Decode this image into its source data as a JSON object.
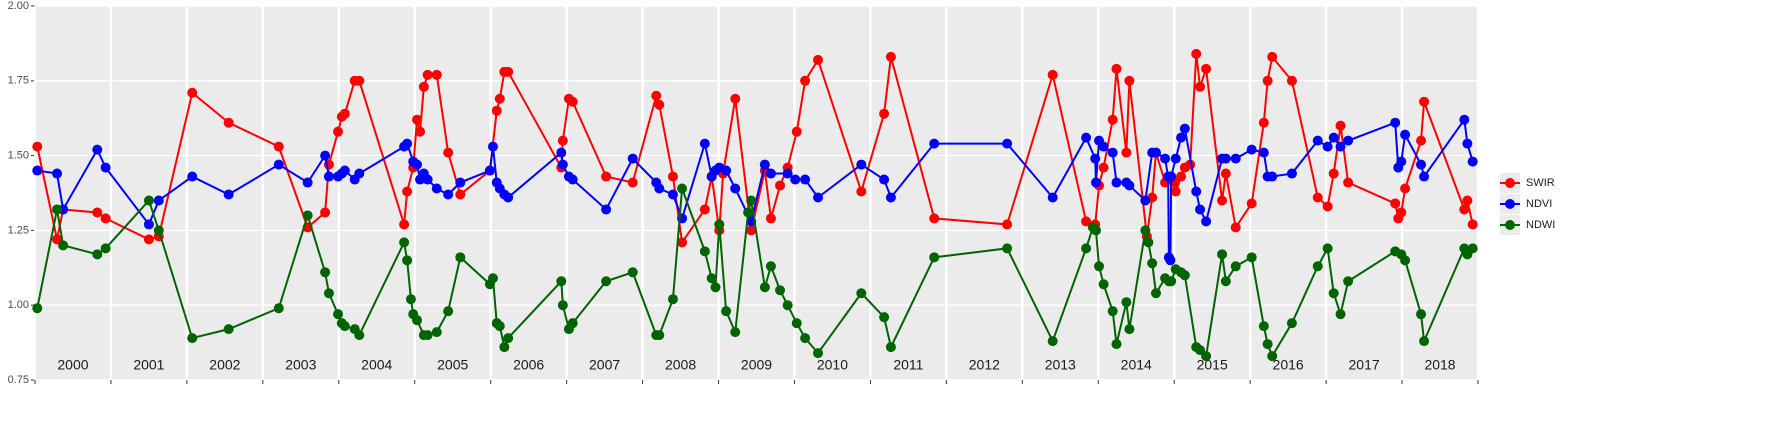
{
  "chart_data": {
    "type": "line",
    "xlim": [
      2000,
      2019
    ],
    "xticks": [
      2000,
      2001,
      2002,
      2003,
      2004,
      2005,
      2006,
      2007,
      2008,
      2009,
      2010,
      2011,
      2012,
      2013,
      2014,
      2015,
      2016,
      2017,
      2018,
      2019
    ],
    "year_labels": [
      "2000",
      "2001",
      "2002",
      "2003",
      "2004",
      "2005",
      "2006",
      "2007",
      "2008",
      "2009",
      "2010",
      "2011",
      "2012",
      "2013",
      "2014",
      "2015",
      "2016",
      "2017",
      "2018"
    ],
    "ylim": [
      0.75,
      2.0
    ],
    "yticks": [
      0.75,
      {
        "value": 1,
        "label": "1.00"
      },
      1.25,
      {
        "value": 1.5,
        "label": "1.50"
      },
      1.75,
      {
        "value": 2,
        "label": "2.00"
      }
    ],
    "grid": true,
    "legend_position": "right",
    "series": [
      {
        "name": "SWIR",
        "color": "#ff0000",
        "x": [
          2000.03,
          2000.29,
          2000.37,
          2000.82,
          2000.93,
          2001.5,
          2001.63,
          2002.07,
          2002.55,
          2003.21,
          2003.59,
          2003.82,
          2003.87,
          2003.99,
          2004.04,
          2004.08,
          2004.21,
          2004.27,
          2004.86,
          2004.9,
          2004.98,
          2005.03,
          2005.07,
          2005.12,
          2005.17,
          2005.29,
          2005.44,
          2005.6,
          2005.99,
          2006.08,
          2006.12,
          2006.18,
          2006.23,
          2006.93,
          2006.95,
          2007.03,
          2007.08,
          2007.52,
          2007.87,
          2008.18,
          2008.22,
          2008.4,
          2008.52,
          2008.82,
          2008.91,
          2009.01,
          2009.06,
          2009.22,
          2009.43,
          2009.61,
          2009.69,
          2009.81,
          2009.91,
          2010.03,
          2010.14,
          2010.31,
          2010.88,
          2011.18,
          2011.27,
          2011.84,
          2012.8,
          2013.4,
          2013.84,
          2013.96,
          2014.01,
          2014.07,
          2014.19,
          2014.24,
          2014.37,
          2014.41,
          2014.64,
          2014.71,
          2014.76,
          2014.88,
          2015.01,
          2015.02,
          2015.09,
          2015.14,
          2015.21,
          2015.29,
          2015.34,
          2015.42,
          2015.63,
          2015.68,
          2015.81,
          2016.02,
          2016.18,
          2016.23,
          2016.29,
          2016.55,
          2016.89,
          2017.02,
          2017.1,
          2017.19,
          2017.29,
          2017.91,
          2017.95,
          2017.99,
          2018.04,
          2018.25,
          2018.29,
          2018.82,
          2018.86,
          2018.93
        ],
        "values": [
          1.53,
          1.22,
          1.32,
          1.31,
          1.29,
          1.22,
          1.23,
          1.71,
          1.61,
          1.53,
          1.26,
          1.31,
          1.47,
          1.58,
          1.63,
          1.64,
          1.75,
          1.75,
          1.27,
          1.38,
          1.46,
          1.62,
          1.58,
          1.73,
          1.77,
          1.77,
          1.51,
          1.37,
          1.45,
          1.65,
          1.69,
          1.78,
          1.78,
          1.46,
          1.55,
          1.69,
          1.68,
          1.43,
          1.41,
          1.7,
          1.67,
          1.43,
          1.21,
          1.32,
          1.43,
          1.25,
          1.44,
          1.69,
          1.25,
          1.45,
          1.29,
          1.4,
          1.46,
          1.58,
          1.75,
          1.82,
          1.38,
          1.64,
          1.83,
          1.29,
          1.27,
          1.77,
          1.28,
          1.27,
          1.4,
          1.46,
          1.62,
          1.79,
          1.51,
          1.75,
          1.23,
          1.36,
          1.51,
          1.41,
          1.41,
          1.38,
          1.43,
          1.46,
          1.47,
          1.84,
          1.73,
          1.79,
          1.35,
          1.44,
          1.26,
          1.34,
          1.61,
          1.75,
          1.83,
          1.75,
          1.36,
          1.33,
          1.44,
          1.6,
          1.41,
          1.34,
          1.29,
          1.31,
          1.39,
          1.55,
          1.68,
          1.32,
          1.35,
          1.27
        ]
      },
      {
        "name": "NDVI",
        "color": "#0000ff",
        "x": [
          2000.03,
          2000.29,
          2000.37,
          2000.82,
          2000.93,
          2001.5,
          2001.63,
          2002.07,
          2002.55,
          2003.21,
          2003.59,
          2003.82,
          2003.87,
          2003.99,
          2004.04,
          2004.08,
          2004.21,
          2004.27,
          2004.86,
          2004.9,
          2004.98,
          2005.03,
          2005.07,
          2005.12,
          2005.17,
          2005.29,
          2005.44,
          2005.6,
          2005.99,
          2006.03,
          2006.08,
          2006.12,
          2006.18,
          2006.23,
          2006.93,
          2006.95,
          2007.03,
          2007.08,
          2007.52,
          2007.87,
          2008.18,
          2008.22,
          2008.4,
          2008.52,
          2008.82,
          2008.91,
          2008.96,
          2009.01,
          2009.1,
          2009.22,
          2009.43,
          2009.61,
          2009.69,
          2009.91,
          2010.01,
          2010.14,
          2010.31,
          2010.88,
          2011.18,
          2011.27,
          2011.84,
          2012.8,
          2013.4,
          2013.84,
          2013.96,
          2013.97,
          2014.01,
          2014.07,
          2014.19,
          2014.24,
          2014.37,
          2014.41,
          2014.62,
          2014.71,
          2014.76,
          2014.88,
          2014.92,
          2014.93,
          2014.95,
          2014.96,
          2015.02,
          2015.09,
          2015.14,
          2015.29,
          2015.34,
          2015.42,
          2015.63,
          2015.68,
          2015.81,
          2016.02,
          2016.18,
          2016.23,
          2016.29,
          2016.55,
          2016.89,
          2017.02,
          2017.1,
          2017.19,
          2017.29,
          2017.91,
          2017.95,
          2017.99,
          2018.04,
          2018.25,
          2018.29,
          2018.82,
          2018.86,
          2018.93
        ],
        "values": [
          1.45,
          1.44,
          1.32,
          1.52,
          1.46,
          1.27,
          1.35,
          1.43,
          1.37,
          1.47,
          1.41,
          1.5,
          1.43,
          1.43,
          1.44,
          1.45,
          1.42,
          1.44,
          1.53,
          1.54,
          1.48,
          1.47,
          1.42,
          1.44,
          1.42,
          1.39,
          1.37,
          1.41,
          1.45,
          1.53,
          1.41,
          1.39,
          1.37,
          1.36,
          1.51,
          1.47,
          1.43,
          1.42,
          1.32,
          1.49,
          1.41,
          1.39,
          1.37,
          1.29,
          1.54,
          1.43,
          1.45,
          1.46,
          1.45,
          1.39,
          1.28,
          1.47,
          1.44,
          1.44,
          1.42,
          1.42,
          1.36,
          1.47,
          1.42,
          1.36,
          1.54,
          1.54,
          1.36,
          1.56,
          1.49,
          1.41,
          1.55,
          1.53,
          1.51,
          1.41,
          1.41,
          1.4,
          1.35,
          1.51,
          1.51,
          1.49,
          1.43,
          1.16,
          1.15,
          1.43,
          1.49,
          1.56,
          1.59,
          1.38,
          1.32,
          1.28,
          1.49,
          1.49,
          1.49,
          1.52,
          1.51,
          1.43,
          1.43,
          1.44,
          1.55,
          1.53,
          1.56,
          1.53,
          1.55,
          1.61,
          1.46,
          1.48,
          1.57,
          1.47,
          1.43,
          1.62,
          1.54,
          1.48
        ]
      },
      {
        "name": "NDWI",
        "color": "#006400",
        "x": [
          2000.03,
          2000.29,
          2000.37,
          2000.82,
          2000.93,
          2001.5,
          2001.63,
          2002.07,
          2002.55,
          2003.21,
          2003.59,
          2003.82,
          2003.87,
          2003.99,
          2004.04,
          2004.08,
          2004.21,
          2004.27,
          2004.86,
          2004.9,
          2004.95,
          2004.98,
          2005.03,
          2005.12,
          2005.17,
          2005.29,
          2005.44,
          2005.6,
          2005.99,
          2006.03,
          2006.08,
          2006.12,
          2006.18,
          2006.23,
          2006.93,
          2006.95,
          2007.03,
          2007.08,
          2007.52,
          2007.87,
          2008.18,
          2008.22,
          2008.4,
          2008.52,
          2008.82,
          2008.91,
          2008.96,
          2009.01,
          2009.1,
          2009.22,
          2009.39,
          2009.43,
          2009.61,
          2009.69,
          2009.81,
          2009.91,
          2010.03,
          2010.14,
          2010.31,
          2010.88,
          2011.18,
          2011.27,
          2011.84,
          2012.8,
          2013.4,
          2013.84,
          2013.93,
          2013.97,
          2014.01,
          2014.07,
          2014.19,
          2014.24,
          2014.37,
          2014.41,
          2014.62,
          2014.66,
          2014.71,
          2014.76,
          2014.88,
          2014.93,
          2014.96,
          2015.02,
          2015.09,
          2015.14,
          2015.29,
          2015.34,
          2015.42,
          2015.63,
          2015.68,
          2015.81,
          2016.02,
          2016.18,
          2016.23,
          2016.29,
          2016.55,
          2016.89,
          2017.02,
          2017.1,
          2017.19,
          2017.29,
          2017.91,
          2017.99,
          2018.04,
          2018.25,
          2018.29,
          2018.82,
          2018.86,
          2018.93
        ],
        "values": [
          0.99,
          1.32,
          1.2,
          1.17,
          1.19,
          1.35,
          1.25,
          0.89,
          0.92,
          0.99,
          1.3,
          1.11,
          1.04,
          0.97,
          0.94,
          0.93,
          0.92,
          0.9,
          1.21,
          1.15,
          1.02,
          0.97,
          0.95,
          0.9,
          0.9,
          0.91,
          0.98,
          1.16,
          1.07,
          1.09,
          0.94,
          0.93,
          0.86,
          0.89,
          1.08,
          1.0,
          0.92,
          0.94,
          1.08,
          1.11,
          0.9,
          0.9,
          1.02,
          1.39,
          1.18,
          1.09,
          1.06,
          1.27,
          0.98,
          0.91,
          1.31,
          1.35,
          1.06,
          1.13,
          1.05,
          1.0,
          0.94,
          0.89,
          0.84,
          1.04,
          0.96,
          0.86,
          1.16,
          1.19,
          0.88,
          1.19,
          1.26,
          1.25,
          1.13,
          1.07,
          0.98,
          0.87,
          1.01,
          0.92,
          1.25,
          1.21,
          1.14,
          1.04,
          1.09,
          1.08,
          1.08,
          1.12,
          1.11,
          1.1,
          0.86,
          0.85,
          0.83,
          1.17,
          1.08,
          1.13,
          1.16,
          0.93,
          0.87,
          0.83,
          0.94,
          1.13,
          1.19,
          1.04,
          0.97,
          1.08,
          1.18,
          1.17,
          1.15,
          0.97,
          0.88,
          1.19,
          1.17,
          1.19
        ]
      }
    ]
  }
}
